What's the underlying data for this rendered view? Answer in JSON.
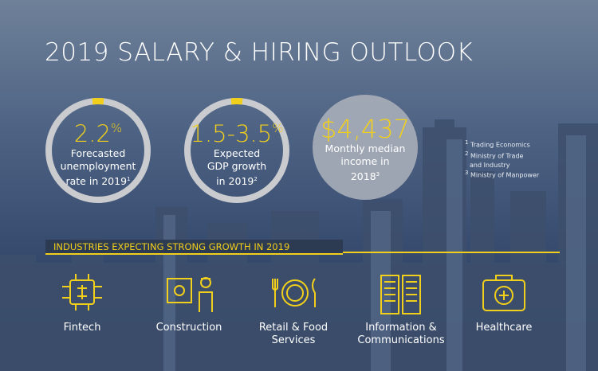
{
  "title": "2019 SALARY & HIRING OUTLOOK",
  "stats": [
    {
      "value": "2.2",
      "unit": "%",
      "lines": [
        "Forecasted",
        "unemployment",
        "rate in 2019"
      ],
      "note": "1"
    },
    {
      "value": "1.5-3.5",
      "unit": "%",
      "lines": [
        "Expected",
        "GDP growth",
        "in 2019"
      ],
      "note": "2"
    },
    {
      "value": "$4,437",
      "lines": [
        "Monthly median",
        "income in",
        "2018"
      ],
      "note": "3"
    }
  ],
  "footnotes": [
    {
      "number": "1",
      "lines": [
        "Trading Economics"
      ]
    },
    {
      "number": "2",
      "lines": [
        "Ministry of Trade",
        "and Industry"
      ]
    },
    {
      "number": "3",
      "lines": [
        "Ministry of Manpower"
      ]
    }
  ],
  "banner": "INDUSTRIES EXPECTING STRONG GROWTH IN 2019",
  "industries": [
    {
      "lines": [
        "Fintech"
      ]
    },
    {
      "lines": [
        "Construction"
      ]
    },
    {
      "lines": [
        "Retail & Food",
        "Services"
      ]
    },
    {
      "lines": [
        "Information &",
        "Communications"
      ]
    },
    {
      "lines": [
        "Healthcare"
      ]
    }
  ]
}
